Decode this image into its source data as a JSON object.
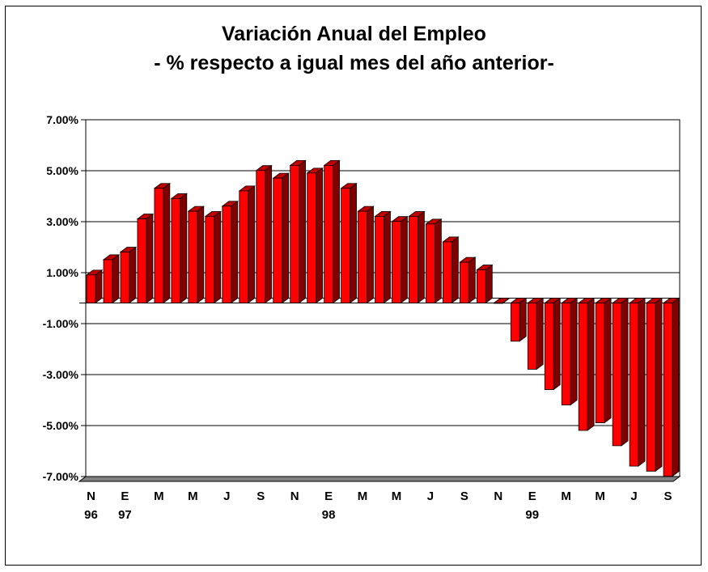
{
  "chart_data": {
    "type": "bar",
    "title": "Variación Anual del Empleo",
    "subtitle": "- % respecto a igual mes del año anterior-",
    "xlabel": "",
    "ylabel": "",
    "ylim": [
      -7,
      7
    ],
    "yticks": [
      7,
      5,
      3,
      1,
      -1,
      -3,
      -5,
      -7
    ],
    "ytick_labels": [
      "7.00%",
      "5.00%",
      "3.00%",
      "1.00%",
      "-1.00%",
      "-3.00%",
      "-5.00%",
      "-7.00%"
    ],
    "grid": true,
    "legend": "none",
    "bar_color": "#ff0000",
    "categories": [
      "Nov-96",
      "Dic-96",
      "Ene-97",
      "Feb-97",
      "Mar-97",
      "Abr-97",
      "May-97",
      "Jun-97",
      "Jul-97",
      "Ago-97",
      "Sep-97",
      "Oct-97",
      "Nov-97",
      "Dic-97",
      "Ene-98",
      "Feb-98",
      "Mar-98",
      "Abr-98",
      "May-98",
      "Jun-98",
      "Jul-98",
      "Ago-98",
      "Sep-98",
      "Oct-98",
      "Nov-98",
      "Dic-98",
      "Ene-99",
      "Feb-99",
      "Mar-99",
      "Abr-99",
      "May-99",
      "Jun-99",
      "Jul-99",
      "Ago-99",
      "Sep-99"
    ],
    "values": [
      1.1,
      1.7,
      2.0,
      3.3,
      4.5,
      4.1,
      3.6,
      3.4,
      3.8,
      4.4,
      5.2,
      4.9,
      5.4,
      5.1,
      5.4,
      4.5,
      3.6,
      3.4,
      3.2,
      3.4,
      3.1,
      2.4,
      1.6,
      1.3,
      0.0,
      -1.5,
      -2.6,
      -3.4,
      -4.0,
      -5.0,
      -4.7,
      -5.6,
      -6.4,
      -6.6,
      -6.8
    ],
    "xtick_labels": [
      "N",
      "",
      "E",
      "",
      "M",
      "",
      "M",
      "",
      "J",
      "",
      "S",
      "",
      "N",
      "",
      "E",
      "",
      "M",
      "",
      "M",
      "",
      "J",
      "",
      "S",
      "",
      "N",
      "",
      "E",
      "",
      "M",
      "",
      "M",
      "",
      "J",
      "",
      "S"
    ],
    "xtick_sublabels": [
      "96",
      "",
      "97",
      "",
      "",
      "",
      "",
      "",
      "",
      "",
      "",
      "",
      "",
      "",
      "98",
      "",
      "",
      "",
      "",
      "",
      "",
      "",
      "",
      "",
      "",
      "",
      "99",
      "",
      "",
      "",
      "",
      "",
      "",
      "",
      ""
    ]
  }
}
